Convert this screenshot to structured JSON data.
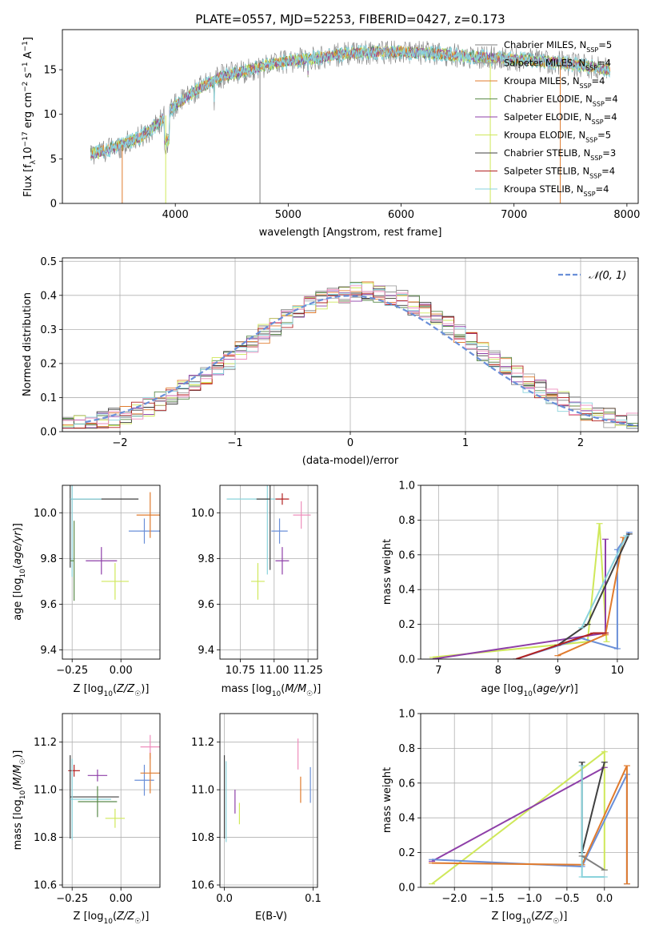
{
  "title": "PLATE=0557, MJD=52253, FIBERID=0427, z=0.173",
  "colors": {
    "chabrier_miles": "#7f7f7f",
    "salpeter_miles": "#a0a0a0",
    "kroupa_miles": "#e07b2e",
    "chabrier_elodie": "#5a8a4a",
    "salpeter_elodie": "#8e3fa8",
    "kroupa_elodie": "#cfe85a",
    "chabrier_stelib": "#404040",
    "salpeter_stelib": "#b22222",
    "kroupa_stelib": "#8ad3dc",
    "blue": "#6a8fd8",
    "pink": "#ee8ebc",
    "grid": "#b0b0b0"
  },
  "chart_data": [
    {
      "id": "spectrum",
      "type": "line",
      "xlabel": "wavelength [Angstrom, rest frame]",
      "ylabel": "Flux [f_λ10^-17 erg cm^-2 s^-1 A^-1]",
      "xlim": [
        3000,
        8100
      ],
      "ylim": [
        0,
        19.5
      ],
      "xticks": [
        4000,
        5000,
        6000,
        7000,
        8000
      ],
      "yticks": [
        0,
        5,
        10,
        15
      ],
      "legend_position": "top-right",
      "legend": [
        {
          "label": "Chabrier MILES, N",
          "sub": "SSP",
          "tail": "=5",
          "color": "chabrier_miles"
        },
        {
          "label": "Salpeter MILES, N",
          "sub": "SSP",
          "tail": "=4",
          "color": "salpeter_miles"
        },
        {
          "label": "Kroupa MILES, N",
          "sub": "SSP",
          "tail": "=4",
          "color": "kroupa_miles"
        },
        {
          "label": "Chabrier ELODIE, N",
          "sub": "SSP",
          "tail": "=4",
          "color": "chabrier_elodie"
        },
        {
          "label": "Salpeter ELODIE, N",
          "sub": "SSP",
          "tail": "=4",
          "color": "salpeter_elodie"
        },
        {
          "label": "Kroupa ELODIE, N",
          "sub": "SSP",
          "tail": "=5",
          "color": "kroupa_elodie"
        },
        {
          "label": "Chabrier STELIB, N",
          "sub": "SSP",
          "tail": "=3",
          "color": "chabrier_stelib"
        },
        {
          "label": "Salpeter STELIB, N",
          "sub": "SSP",
          "tail": "=4",
          "color": "salpeter_stelib"
        },
        {
          "label": "Kroupa STELIB, N",
          "sub": "SSP",
          "tail": "=4",
          "color": "kroupa_stelib"
        }
      ],
      "continuum": [
        [
          3250,
          5.5
        ],
        [
          3500,
          6.4
        ],
        [
          3700,
          7.5
        ],
        [
          3850,
          9.0
        ],
        [
          4000,
          11.0
        ],
        [
          4200,
          12.8
        ],
        [
          4400,
          14.2
        ],
        [
          4600,
          14.8
        ],
        [
          4800,
          15.5
        ],
        [
          5000,
          16.0
        ],
        [
          5200,
          16.2
        ],
        [
          5500,
          16.8
        ],
        [
          5800,
          17.0
        ],
        [
          6000,
          17.0
        ],
        [
          6300,
          16.8
        ],
        [
          6600,
          16.5
        ],
        [
          7000,
          16.2
        ],
        [
          7400,
          15.8
        ],
        [
          7850,
          15.0
        ]
      ],
      "model_series": [
        {
          "color": "kroupa_miles",
          "drops": [
            [
              3530,
              0
            ],
            [
              7410,
              0
            ]
          ]
        },
        {
          "color": "kroupa_elodie",
          "drops": [
            [
              3915,
              0
            ],
            [
              6790,
              0
            ]
          ]
        },
        {
          "color": "chabrier_miles",
          "drops": [
            [
              4750,
              0
            ]
          ]
        }
      ]
    },
    {
      "id": "residuals",
      "type": "histogram",
      "xlabel": "(data-model)/error",
      "ylabel": "Normed distribution",
      "xlim": [
        -2.5,
        2.5
      ],
      "ylim": [
        0,
        0.51
      ],
      "xticks": [
        -2,
        -1,
        0,
        1,
        2
      ],
      "yticks": [
        0.0,
        0.1,
        0.2,
        0.3,
        0.4,
        0.5
      ],
      "bin_width": 0.1,
      "legend_position": "top-right",
      "curve_label": "N(0,1)",
      "curve_color": "blue"
    },
    {
      "id": "age_vs_Z",
      "type": "errorbar",
      "xlabel": "Z [log10(Z/Z☉)]",
      "ylabel": "age  [log10(age/yr)]",
      "xlim": [
        -0.3,
        0.2
      ],
      "ylim": [
        9.36,
        10.12
      ],
      "xticks": [
        -0.25,
        0.0
      ],
      "yticks": [
        9.4,
        9.6,
        9.8,
        10.0
      ],
      "points": [
        {
          "x": -0.26,
          "y": 10.06,
          "xerr": [
            0.0,
            0.35
          ],
          "yerr": 0.6,
          "color": "chabrier_stelib"
        },
        {
          "x": -0.25,
          "y": 10.06,
          "xerr": [
            0.01,
            0.15
          ],
          "yerr": 0.68,
          "color": "kroupa_stelib"
        },
        {
          "x": -0.24,
          "y": 9.79,
          "xerr": [
            0.02,
            0.0
          ],
          "yerr": 0.35,
          "color": "chabrier_elodie"
        },
        {
          "x": -0.1,
          "y": 9.79,
          "xerr": [
            0.08,
            0.08
          ],
          "yerr": 0.12,
          "color": "salpeter_elodie"
        },
        {
          "x": -0.03,
          "y": 9.7,
          "xerr": [
            0.07,
            0.07
          ],
          "yerr": 0.16,
          "color": "kroupa_elodie"
        },
        {
          "x": 0.12,
          "y": 9.92,
          "xerr": [
            0.08,
            0.08
          ],
          "yerr": 0.11,
          "color": "blue"
        },
        {
          "x": 0.15,
          "y": 9.99,
          "xerr": [
            0.07,
            0.08
          ],
          "yerr": 0.2,
          "color": "kroupa_miles"
        }
      ]
    },
    {
      "id": "age_vs_mass",
      "type": "errorbar",
      "xlabel": "mass [log10(M/M☉)]",
      "ylabel": "",
      "xlim": [
        10.6,
        11.32
      ],
      "ylim": [
        9.36,
        10.12
      ],
      "xticks": [
        10.75,
        11.0,
        11.25
      ],
      "yticks": [
        9.4,
        9.6,
        9.8,
        10.0
      ],
      "points": [
        {
          "x": 10.95,
          "y": 10.06,
          "xerr": [
            0.3,
            0.1
          ],
          "yerr": 0.66,
          "color": "kroupa_stelib"
        },
        {
          "x": 10.97,
          "y": 10.06,
          "xerr": [
            0.1,
            0.0
          ],
          "yerr": 0.62,
          "color": "chabrier_stelib"
        },
        {
          "x": 11.06,
          "y": 10.06,
          "xerr": [
            0.05,
            0.05
          ],
          "yerr": 0.05,
          "color": "salpeter_stelib"
        },
        {
          "x": 11.06,
          "y": 9.79,
          "xerr": [
            0.05,
            0.05
          ],
          "yerr": 0.12,
          "color": "salpeter_elodie"
        },
        {
          "x": 10.88,
          "y": 9.7,
          "xerr": [
            0.05,
            0.05
          ],
          "yerr": 0.16,
          "color": "kroupa_elodie"
        },
        {
          "x": 11.04,
          "y": 9.92,
          "xerr": [
            0.06,
            0.06
          ],
          "yerr": 0.11,
          "color": "blue"
        },
        {
          "x": 11.2,
          "y": 9.99,
          "xerr": [
            0.06,
            0.07
          ],
          "yerr": 0.12,
          "color": "pink"
        }
      ]
    },
    {
      "id": "massweight_vs_age",
      "type": "line",
      "xlabel": "age  [log10(age/yr)]",
      "ylabel": "mass weight",
      "xlim": [
        6.7,
        10.35
      ],
      "ylim": [
        0,
        1.0
      ],
      "xticks": [
        7,
        8,
        9,
        10
      ],
      "yticks": [
        0.0,
        0.2,
        0.4,
        0.6,
        0.8,
        1.0
      ],
      "series": [
        {
          "color": "kroupa_elodie",
          "points": [
            [
              6.9,
              0.01
            ],
            [
              9.5,
              0.1
            ],
            [
              9.7,
              0.78
            ],
            [
              9.82,
              0.1
            ]
          ]
        },
        {
          "color": "salpeter_elodie",
          "points": [
            [
              6.9,
              0.0
            ],
            [
              9.8,
              0.15
            ],
            [
              9.8,
              0.69
            ]
          ]
        },
        {
          "color": "blue",
          "points": [
            [
              8.3,
              0.0
            ],
            [
              9.4,
              0.12
            ],
            [
              10.0,
              0.06
            ],
            [
              10.0,
              0.63
            ],
            [
              10.2,
              0.73
            ]
          ]
        },
        {
          "color": "kroupa_miles",
          "points": [
            [
              9.0,
              0.02
            ],
            [
              9.8,
              0.14
            ],
            [
              10.1,
              0.7
            ]
          ]
        },
        {
          "color": "chabrier_stelib",
          "points": [
            [
              9.0,
              0.08
            ],
            [
              9.5,
              0.2
            ],
            [
              10.2,
              0.72
            ]
          ]
        },
        {
          "color": "salpeter_stelib",
          "points": [
            [
              8.3,
              0.0
            ],
            [
              9.6,
              0.15
            ],
            [
              9.8,
              0.15
            ]
          ]
        },
        {
          "color": "kroupa_stelib",
          "points": [
            [
              9.4,
              0.18
            ],
            [
              10.15,
              0.71
            ]
          ]
        }
      ]
    },
    {
      "id": "mass_vs_Z",
      "type": "errorbar",
      "xlabel": "Z [log10(Z/Z☉)]",
      "ylabel": "mass [log10(M/M☉)]",
      "xlim": [
        -0.3,
        0.2
      ],
      "ylim": [
        10.59,
        11.32
      ],
      "xticks": [
        -0.25,
        0.0
      ],
      "yticks": [
        10.6,
        10.8,
        11.0,
        11.2
      ],
      "points": [
        {
          "x": -0.24,
          "y": 11.08,
          "xerr": [
            0.03,
            0.03
          ],
          "yerr": 0.05,
          "color": "salpeter_stelib"
        },
        {
          "x": -0.12,
          "y": 11.06,
          "xerr": [
            0.05,
            0.05
          ],
          "yerr": 0.05,
          "color": "salpeter_elodie"
        },
        {
          "x": -0.26,
          "y": 10.97,
          "xerr": [
            0.0,
            0.25
          ],
          "yerr": 0.35,
          "color": "chabrier_stelib"
        },
        {
          "x": -0.25,
          "y": 10.96,
          "xerr": [
            0.01,
            0.2
          ],
          "yerr": 0.34,
          "color": "kroupa_stelib"
        },
        {
          "x": -0.12,
          "y": 10.95,
          "xerr": [
            0.1,
            0.1
          ],
          "yerr": 0.13,
          "color": "chabrier_elodie"
        },
        {
          "x": -0.03,
          "y": 10.88,
          "xerr": [
            0.05,
            0.05
          ],
          "yerr": 0.08,
          "color": "kroupa_elodie"
        },
        {
          "x": 0.15,
          "y": 11.18,
          "xerr": [
            0.05,
            0.08
          ],
          "yerr": 0.1,
          "color": "pink"
        },
        {
          "x": 0.12,
          "y": 11.04,
          "xerr": [
            0.05,
            0.05
          ],
          "yerr": 0.13,
          "color": "blue"
        },
        {
          "x": 0.15,
          "y": 11.07,
          "xerr": [
            0.05,
            0.05
          ],
          "yerr": 0.17,
          "color": "kroupa_miles"
        }
      ]
    },
    {
      "id": "mass_vs_ebv",
      "type": "errorbar",
      "xlabel": "E(B-V)",
      "ylabel": "",
      "xlim": [
        -0.005,
        0.105
      ],
      "ylim": [
        10.59,
        11.32
      ],
      "xticks": [
        0.0,
        0.1
      ],
      "yticks": [
        10.6,
        10.8,
        11.0,
        11.2
      ],
      "points": [
        {
          "x": 0.0,
          "y": 10.97,
          "xerr": [
            0,
            0
          ],
          "yerr": 0.35,
          "color": "chabrier_stelib"
        },
        {
          "x": 0.002,
          "y": 10.95,
          "xerr": [
            0,
            0
          ],
          "yerr": 0.34,
          "color": "kroupa_stelib"
        },
        {
          "x": 0.012,
          "y": 10.95,
          "xerr": [
            0,
            0
          ],
          "yerr": 0.1,
          "color": "salpeter_elodie"
        },
        {
          "x": 0.017,
          "y": 10.9,
          "xerr": [
            0,
            0
          ],
          "yerr": 0.09,
          "color": "kroupa_elodie"
        },
        {
          "x": 0.083,
          "y": 11.15,
          "xerr": [
            0,
            0
          ],
          "yerr": 0.13,
          "color": "pink"
        },
        {
          "x": 0.086,
          "y": 11.0,
          "xerr": [
            0,
            0
          ],
          "yerr": 0.11,
          "color": "kroupa_miles"
        },
        {
          "x": 0.097,
          "y": 11.02,
          "xerr": [
            0,
            0
          ],
          "yerr": 0.15,
          "color": "blue"
        }
      ]
    },
    {
      "id": "massweight_vs_Z",
      "type": "line",
      "xlabel": "Z [log10(Z/Z☉)]",
      "ylabel": "mass weight",
      "xlim": [
        -2.45,
        0.45
      ],
      "ylim": [
        0,
        1.0
      ],
      "xticks": [
        -2.0,
        -1.5,
        -1.0,
        -0.5,
        0.0
      ],
      "yticks": [
        0.0,
        0.2,
        0.4,
        0.6,
        0.8,
        1.0
      ],
      "series": [
        {
          "color": "kroupa_elodie",
          "points": [
            [
              -2.3,
              0.02
            ],
            [
              0.0,
              0.78
            ],
            [
              0.0,
              0.1
            ]
          ]
        },
        {
          "color": "salpeter_elodie",
          "points": [
            [
              -2.3,
              0.15
            ],
            [
              0.0,
              0.69
            ]
          ]
        },
        {
          "color": "blue",
          "points": [
            [
              -2.3,
              0.16
            ],
            [
              -0.3,
              0.12
            ],
            [
              0.3,
              0.65
            ],
            [
              0.3,
              0.02
            ]
          ]
        },
        {
          "color": "kroupa_miles",
          "points": [
            [
              -2.3,
              0.14
            ],
            [
              -0.3,
              0.13
            ],
            [
              0.3,
              0.7
            ],
            [
              0.3,
              0.02
            ]
          ]
        },
        {
          "color": "chabrier_stelib",
          "points": [
            [
              -0.3,
              0.72
            ],
            [
              -0.3,
              0.2
            ],
            [
              0.0,
              0.72
            ]
          ]
        },
        {
          "color": "kroupa_stelib",
          "points": [
            [
              -0.3,
              0.7
            ],
            [
              -0.3,
              0.06
            ],
            [
              0.0,
              0.06
            ]
          ]
        },
        {
          "color": "chabrier_miles",
          "points": [
            [
              0.0,
              0.1
            ],
            [
              -0.3,
              0.18
            ]
          ]
        }
      ]
    }
  ]
}
